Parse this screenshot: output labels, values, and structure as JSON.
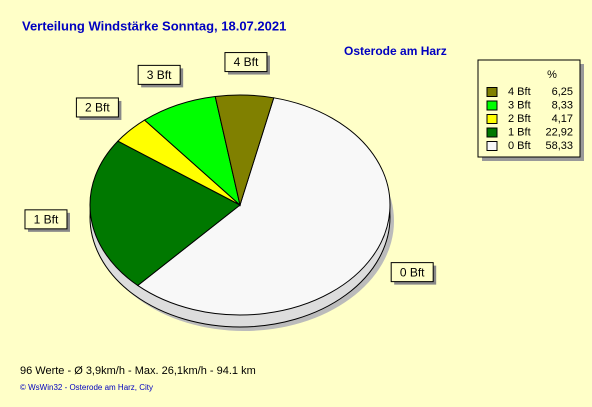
{
  "chart_data": {
    "type": "pie",
    "title": "Verteilung Windstärke  Sonntag, 18.07.2021",
    "subtitle": "Osterode am Harz",
    "legend_header": "%",
    "categories": [
      "4 Bft",
      "3 Bft",
      "2 Bft",
      "1 Bft",
      "0 Bft"
    ],
    "values": [
      6.25,
      8.33,
      4.17,
      22.92,
      58.33
    ],
    "value_labels": [
      "6,25",
      "8,33",
      "4,17",
      "22,92",
      "58,33"
    ],
    "colors": [
      "#808000",
      "#00ff00",
      "#ffff00",
      "#007800",
      "#f8f8f8"
    ],
    "legend": "upper right",
    "footer": "96 Werte   -   Ø 3,9km/h  -  Max. 26,1km/h   -   94.1 km",
    "credit": "© WsWin32  -  Osterode am Harz, City"
  }
}
